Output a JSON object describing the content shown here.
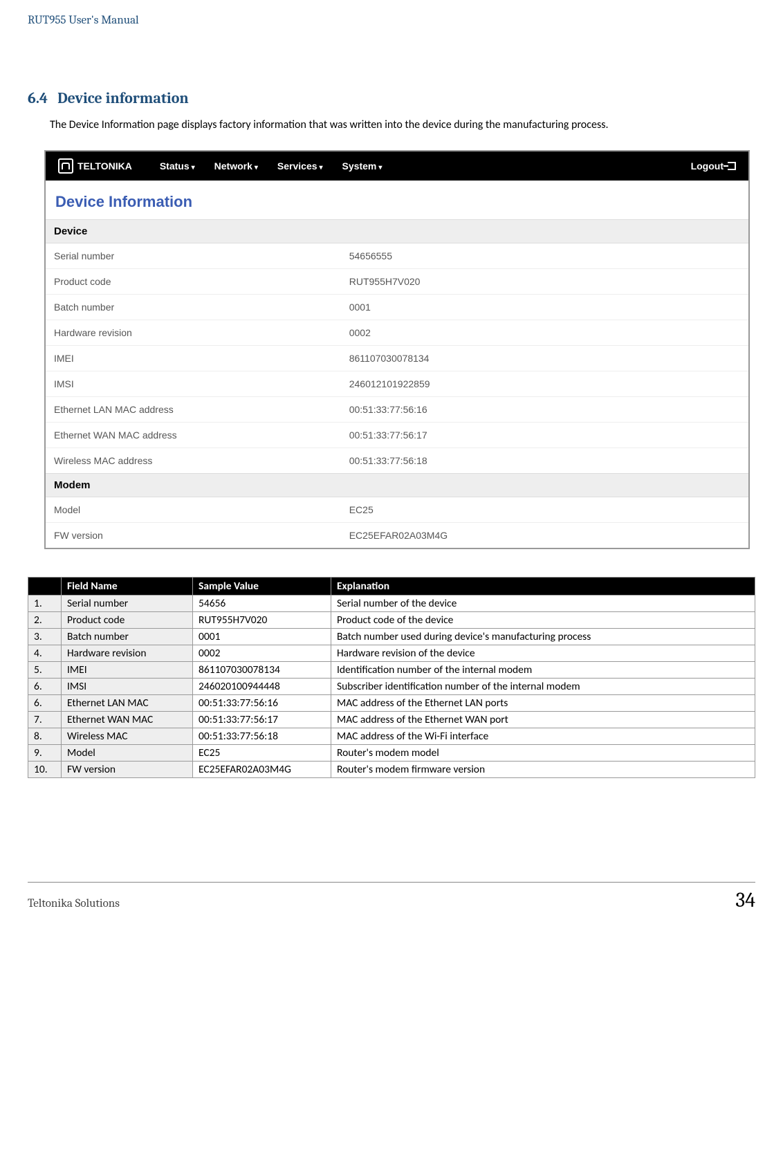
{
  "doc_header": "RUT955 User's Manual",
  "section": {
    "number": "6.4",
    "title": "Device information"
  },
  "intro": "The Device Information page displays factory information that was written into the device during the manufacturing process.",
  "nav": {
    "brand": "TELTONIKA",
    "items": [
      "Status",
      "Network",
      "Services",
      "System"
    ],
    "logout": "Logout"
  },
  "ui": {
    "pageTitle": "Device Information",
    "sectDevice": "Device",
    "sectModem": "Modem",
    "device": [
      {
        "label": "Serial number",
        "value": "54656555"
      },
      {
        "label": "Product code",
        "value": "RUT955H7V020"
      },
      {
        "label": "Batch number",
        "value": "0001"
      },
      {
        "label": "Hardware revision",
        "value": "0002"
      },
      {
        "label": "IMEI",
        "value": "861107030078134"
      },
      {
        "label": "IMSI",
        "value": "246012101922859"
      },
      {
        "label": "Ethernet LAN MAC address",
        "value": "00:51:33:77:56:16"
      },
      {
        "label": "Ethernet WAN MAC address",
        "value": "00:51:33:77:56:17"
      },
      {
        "label": "Wireless MAC address",
        "value": "00:51:33:77:56:18"
      }
    ],
    "modem": [
      {
        "label": "Model",
        "value": "EC25"
      },
      {
        "label": "FW version",
        "value": "EC25EFAR02A03M4G"
      }
    ]
  },
  "table": {
    "headers": [
      "",
      "Field Name",
      "Sample Value",
      "Explanation"
    ],
    "rows": [
      [
        "1.",
        "Serial number",
        "54656",
        "Serial number of the device"
      ],
      [
        "2.",
        "Product code",
        "RUT955H7V020",
        "Product code of the device"
      ],
      [
        "3.",
        "Batch number",
        "0001",
        "Batch number used during device's manufacturing process"
      ],
      [
        "4.",
        "Hardware revision",
        "0002",
        "Hardware revision of the device"
      ],
      [
        "5.",
        "IMEI",
        "861107030078134",
        "Identification number of the internal modem"
      ],
      [
        "6.",
        "IMSI",
        "246020100944448",
        "Subscriber identification number of the internal modem"
      ],
      [
        "6.",
        "Ethernet LAN MAC",
        "00:51:33:77:56:16",
        "MAC address of the Ethernet LAN ports"
      ],
      [
        "7.",
        "Ethernet WAN MAC",
        "00:51:33:77:56:17",
        "MAC address of the Ethernet WAN port"
      ],
      [
        "8.",
        "Wireless MAC",
        "00:51:33:77:56:18",
        "MAC address of the Wi-Fi interface"
      ],
      [
        "9.",
        "Model",
        "EC25",
        "Router's  modem model"
      ],
      [
        "10.",
        "FW version",
        "EC25EFAR02A03M4G",
        "Router's modem firmware version"
      ]
    ]
  },
  "footer": {
    "left": "Teltonika Solutions",
    "page": "34"
  }
}
